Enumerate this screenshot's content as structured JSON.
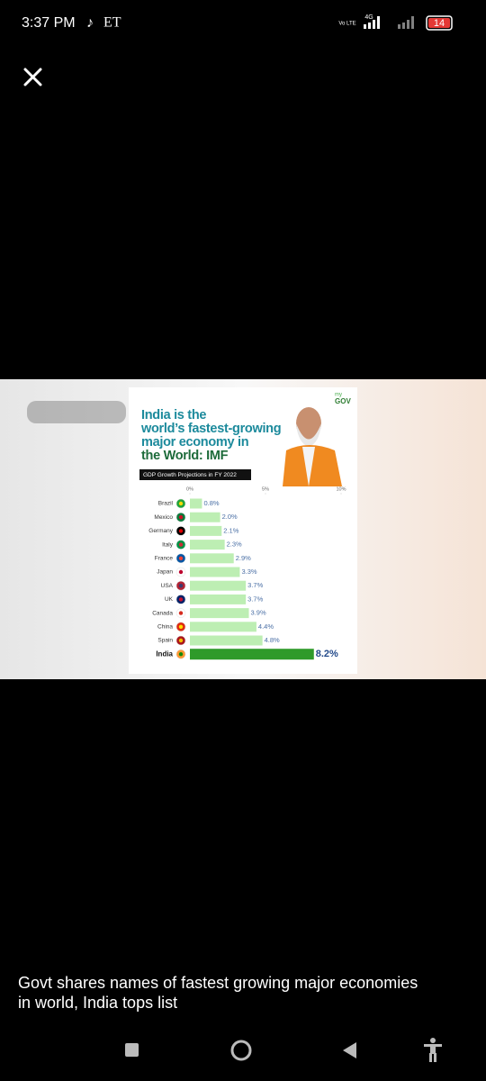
{
  "status_bar": {
    "time": "3:37 PM",
    "carrier": "ET",
    "volte": "Vo LTE",
    "network": "4G",
    "battery": "14"
  },
  "chart_data": {
    "type": "hbar",
    "logo": [
      "my",
      "GOV"
    ],
    "title": [
      "India is the",
      "world’s fastest-growing",
      "major economy in",
      "the World: IMF"
    ],
    "subtitle": "GDP Growth Projections in FY 2022",
    "categories": [
      "Brazil",
      "Mexico",
      "Germany",
      "Italy",
      "France",
      "Japan",
      "USA",
      "UK",
      "Canada",
      "China",
      "Spain",
      "India"
    ],
    "values": [
      0.8,
      2.0,
      2.1,
      2.3,
      2.9,
      3.3,
      3.7,
      3.7,
      3.9,
      4.4,
      4.8,
      8.2
    ],
    "value_labels": [
      "0.8%",
      "2.0%",
      "2.1%",
      "2.3%",
      "2.9%",
      "3.3%",
      "3.7%",
      "3.7%",
      "3.9%",
      "4.4%",
      "4.8%",
      "8.2%"
    ],
    "colors": [
      "#bdeeb3",
      "#bdeeb3",
      "#bdeeb3",
      "#bdeeb3",
      "#bdeeb3",
      "#bdeeb3",
      "#bdeeb3",
      "#bdeeb3",
      "#bdeeb3",
      "#bdeeb3",
      "#bdeeb3",
      "#2f9a2a"
    ],
    "xlim": [
      0,
      10
    ],
    "xticks": [
      {
        "value": 0,
        "label": "0%"
      },
      {
        "value": 5,
        "label": "5%"
      },
      {
        "value": 10,
        "label": "10%"
      }
    ]
  },
  "caption": "Govt shares names of fastest growing major economies in world, India tops list"
}
